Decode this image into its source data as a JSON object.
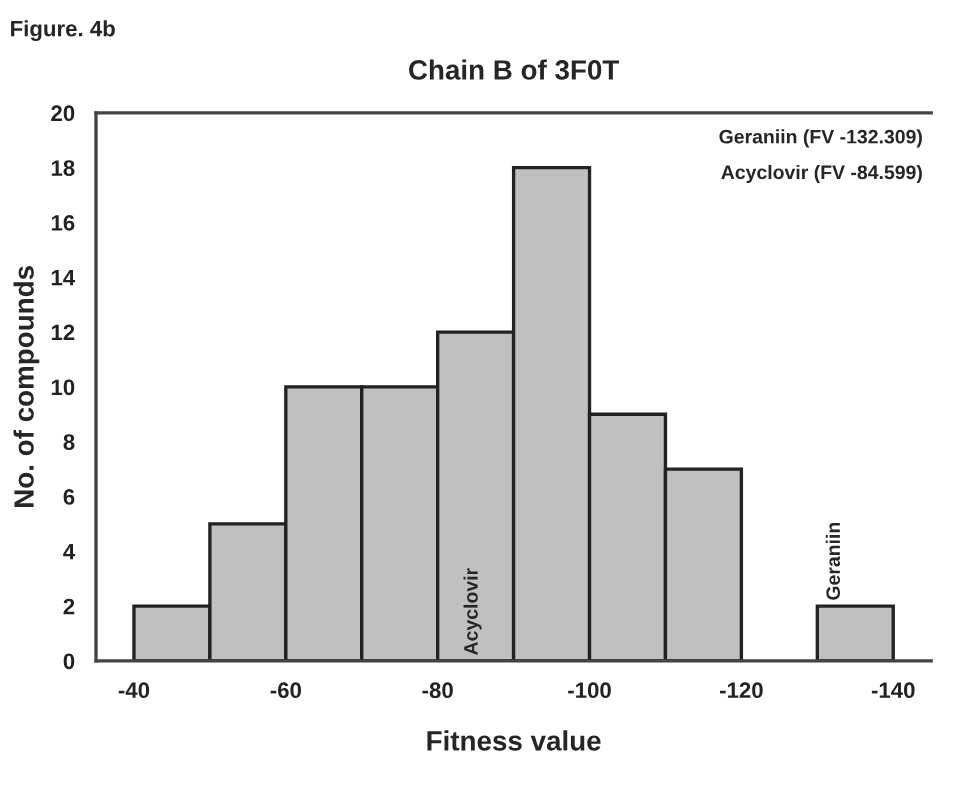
{
  "chart_data": {
    "type": "histogram",
    "title": "Chain B of 3F0T",
    "xlabel": "Fitness value",
    "ylabel": "No. of compounds",
    "bins": [
      -40,
      -50,
      -60,
      -70,
      -80,
      -90,
      -100,
      -110,
      -120,
      -130,
      -140
    ],
    "values": [
      2,
      5,
      10,
      10,
      12,
      18,
      9,
      7,
      0,
      2
    ],
    "color": "#c0c0c0",
    "xlim": [
      -35,
      -145
    ],
    "xticks": [
      -40,
      -60,
      -80,
      -100,
      -120,
      -140
    ],
    "ylim": [
      0,
      20
    ],
    "yticks": [
      0,
      2,
      4,
      6,
      8,
      10,
      12,
      14,
      16,
      18,
      20
    ],
    "grid": false,
    "annotations": [
      "Figure. 4b",
      {
        "text": "Acyclovir",
        "x": -84.599,
        "y": 0
      },
      {
        "text": "Geraniin",
        "x": -132.309,
        "y": 2
      },
      "Geraniin (FV -132.309)",
      "Acyclovir (FV -84.599)"
    ]
  }
}
